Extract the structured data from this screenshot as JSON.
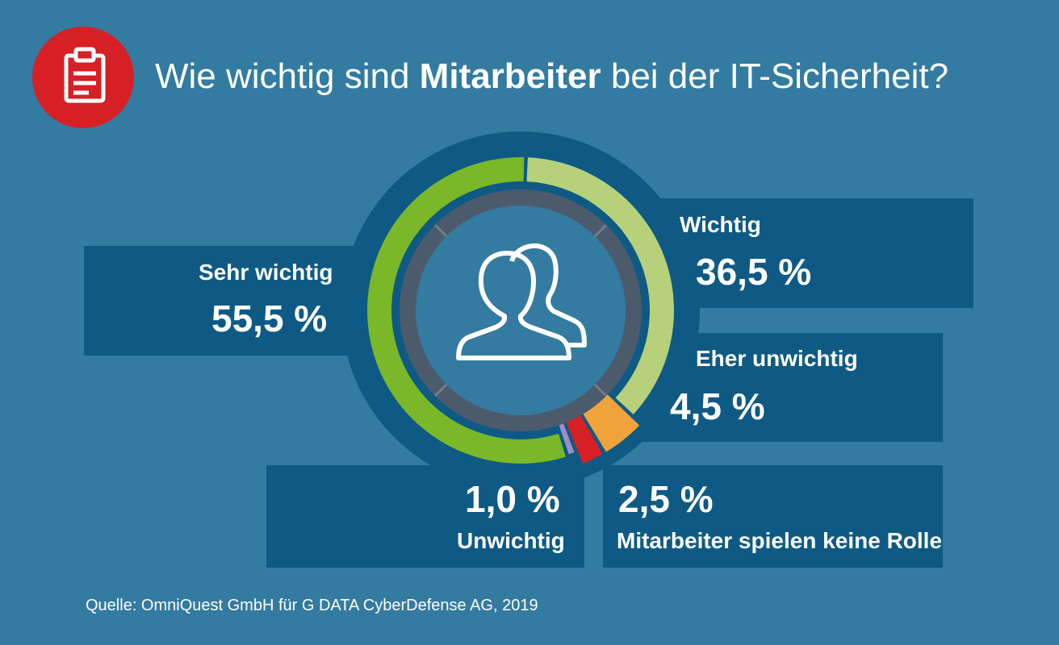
{
  "title": {
    "prefix": "Wie wichtig sind ",
    "bold": "Mitarbeiter",
    "suffix": " bei der IT-Sicherheit?"
  },
  "icon": "clipboard-icon",
  "center_icon": "users-icon",
  "colors": {
    "background": "#337ba0",
    "panel": "#0e5a84",
    "ring_outer": "#0e5a84",
    "ring_inner": "#4c5b6c",
    "badge": "#d71f26"
  },
  "chart_data": {
    "type": "pie",
    "title": "Wie wichtig sind Mitarbeiter bei der IT-Sicherheit?",
    "unit": "%",
    "slices": [
      {
        "name": "Wichtig",
        "value": 36.5,
        "label": "36,5 %",
        "color": "#b6d17a"
      },
      {
        "name": "Eher unwichtig",
        "value": 4.5,
        "label": "4,5 %",
        "color": "#f0a33b"
      },
      {
        "name": "Mitarbeiter spielen keine Rolle",
        "value": 2.5,
        "label": "2,5 %",
        "color": "#d71f26"
      },
      {
        "name": "Unwichtig",
        "value": 1.0,
        "label": "1,0 %",
        "color": "#9d8ec4"
      },
      {
        "name": "Sehr wichtig",
        "value": 55.5,
        "label": "55,5 %",
        "color": "#7ab829"
      }
    ]
  },
  "source": "Quelle: OmniQuest GmbH für G DATA CyberDefense AG, 2019"
}
